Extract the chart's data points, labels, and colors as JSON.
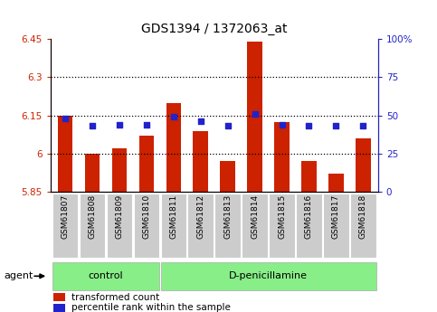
{
  "title": "GDS1394 / 1372063_at",
  "samples": [
    "GSM61807",
    "GSM61808",
    "GSM61809",
    "GSM61810",
    "GSM61811",
    "GSM61812",
    "GSM61813",
    "GSM61814",
    "GSM61815",
    "GSM61816",
    "GSM61817",
    "GSM61818"
  ],
  "bar_values": [
    6.15,
    6.0,
    6.02,
    6.07,
    6.2,
    6.09,
    5.97,
    6.44,
    6.125,
    5.97,
    5.92,
    6.06
  ],
  "dot_values": [
    48,
    43,
    44,
    44,
    49,
    46,
    43,
    51,
    44,
    43,
    43,
    43
  ],
  "ylim_left": [
    5.85,
    6.45
  ],
  "ylim_right": [
    0,
    100
  ],
  "yticks_left": [
    5.85,
    6.0,
    6.15,
    6.3,
    6.45
  ],
  "yticks_right": [
    0,
    25,
    50,
    75,
    100
  ],
  "ytick_labels_left": [
    "5.85",
    "6",
    "6.15",
    "6.3",
    "6.45"
  ],
  "ytick_labels_right": [
    "0",
    "25",
    "50",
    "75",
    "100%"
  ],
  "hlines": [
    6.0,
    6.15,
    6.3
  ],
  "bar_color": "#cc2200",
  "dot_color": "#2222cc",
  "bar_bottom": 5.85,
  "groups": [
    {
      "label": "control",
      "start": 0,
      "end": 3
    },
    {
      "label": "D-penicillamine",
      "start": 4,
      "end": 11
    }
  ],
  "group_color": "#88ee88",
  "tick_bg_color": "#cccccc",
  "legend_bar_label": "transformed count",
  "legend_dot_label": "percentile rank within the sample",
  "agent_label": "agent",
  "title_fontsize": 10,
  "tick_fontsize": 7.5,
  "label_fontsize": 8
}
